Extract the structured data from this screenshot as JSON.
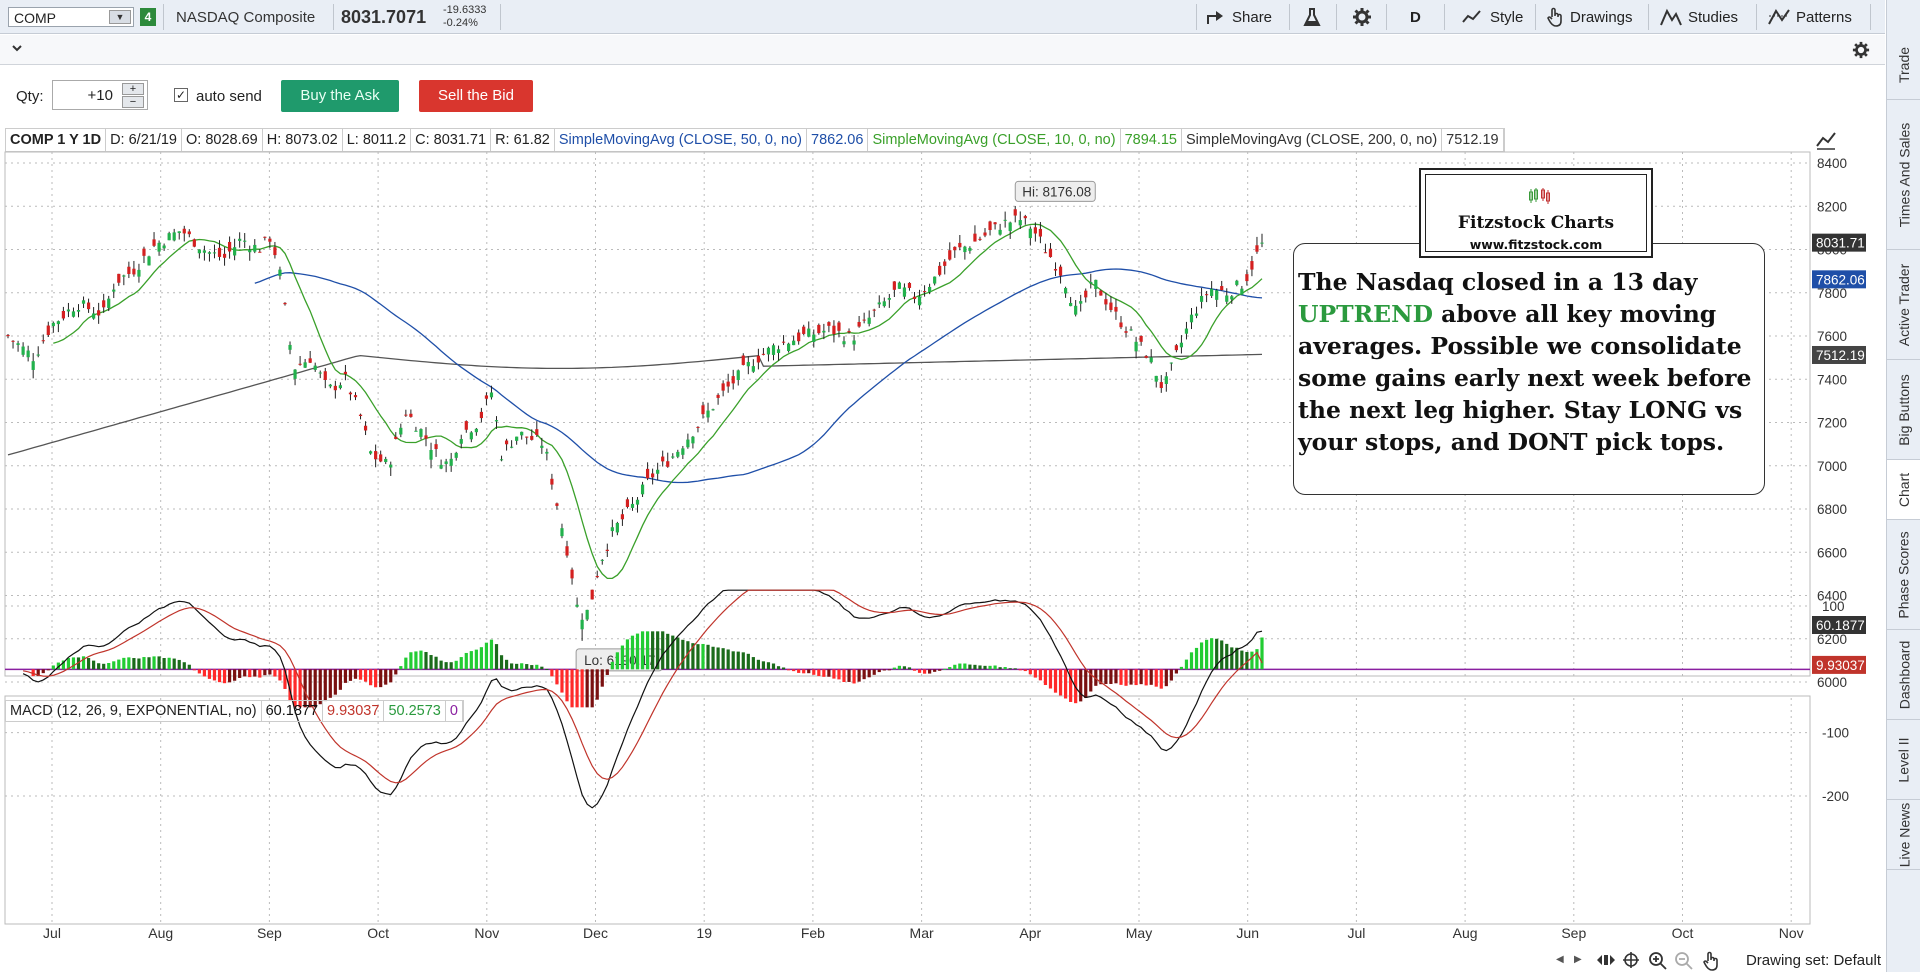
{
  "toolbar": {
    "symbol": "COMP",
    "link_badge": "4",
    "description": "NASDAQ Composite",
    "last_price": "8031.7071",
    "change_abs": "-19.6333",
    "change_pct": "-0.24%",
    "share": "Share",
    "timeframe": "D",
    "style": "Style",
    "drawings": "Drawings",
    "studies": "Studies",
    "patterns": "Patterns"
  },
  "order": {
    "qty_label": "Qty:",
    "qty_value": "+10",
    "auto_send": "auto send",
    "buy_label": "Buy the Ask",
    "sell_label": "Sell the Bid"
  },
  "infobar": {
    "symbol": "COMP 1 Y 1D",
    "date": "D: 6/21/19",
    "open": "O: 8028.69",
    "high": "H: 8073.02",
    "low": "L: 8011.2",
    "close": "C: 8031.71",
    "range": "R: 61.82",
    "sma50_label": "SimpleMovingAvg (CLOSE, 50, 0, no)",
    "sma50_value": "7862.06",
    "sma10_label": "SimpleMovingAvg (CLOSE, 10, 0, no)",
    "sma10_value": "7894.15",
    "sma200_label": "SimpleMovingAvg (CLOSE, 200, 0, no)",
    "sma200_value": "7512.19"
  },
  "price_axis": {
    "ticks": [
      "8400",
      "8200",
      "8000",
      "7800",
      "7600",
      "7400",
      "7200",
      "7000",
      "6800",
      "6600",
      "6400",
      "6200",
      "6000"
    ],
    "last_label": "8031.71",
    "sma50_label": "7862.06",
    "sma200_label": "7512.19"
  },
  "callouts": {
    "high": "Hi: 8176.08",
    "low": "Lo: 6190.17"
  },
  "macd": {
    "label": "MACD (12, 26, 9, EXPONENTIAL, no)",
    "value": "60.1877",
    "avg": "9.93037",
    "diff": "50.2573",
    "zero": "0",
    "axis_ticks": [
      "100",
      "-100",
      "-200"
    ],
    "value_label": "60.1877",
    "avg_label": "9.93037"
  },
  "time_axis": [
    "Jul",
    "Aug",
    "Sep",
    "Oct",
    "Nov",
    "Dec",
    "19",
    "Feb",
    "Mar",
    "Apr",
    "May",
    "Jun",
    "Jul",
    "Aug",
    "Sep",
    "Oct",
    "Nov"
  ],
  "annotation": {
    "part1": "The Nasdaq closed in a 13 day ",
    "uptrend": "UPTREND",
    "part2": " above all key moving averages.   Possible we consolidate some gains early next week before the next leg higher.  Stay LONG vs your stops, and DONT pick tops."
  },
  "logo": {
    "title": "Fitzstock Charts",
    "url": "www.fitzstock.com"
  },
  "sidebar_tabs": [
    "Trade",
    "Times And Sales",
    "Active Trader",
    "Big Buttons",
    "Chart",
    "Phase Scores",
    "Dashboard",
    "Level II",
    "Live News"
  ],
  "bottom": {
    "drawing_set": "Drawing set: Default"
  },
  "colors": {
    "up": "#22b14c",
    "down": "#d42020",
    "sma10": "#3aa02a",
    "sma50": "#1f4fa8",
    "sma200": "#555555",
    "macd_value": "#111111",
    "macd_avg": "#c0342b",
    "zero_line": "#8a1fa0"
  },
  "chart_data": {
    "type": "candlestick",
    "series_closes": {
      "name": "COMP",
      "x_start": "2018-06-25",
      "x_end": "2019-06-21",
      "monthly_approx": [
        {
          "date": "2018-07",
          "close": 7600
        },
        {
          "date": "2018-08",
          "close": 7800
        },
        {
          "date": "2018-09",
          "close": 8100
        },
        {
          "date": "2018-10",
          "close": 7300
        },
        {
          "date": "2018-11",
          "close": 7300
        },
        {
          "date": "2018-12",
          "close": 6400
        },
        {
          "date": "2019-01",
          "close": 7100
        },
        {
          "date": "2019-02",
          "close": 7500
        },
        {
          "date": "2019-03",
          "close": 7700
        },
        {
          "date": "2019-04",
          "close": 8100
        },
        {
          "date": "2019-05",
          "close": 7500
        },
        {
          "date": "2019-06",
          "close": 8031.71
        }
      ]
    },
    "high": 8176.08,
    "low": 6190.17,
    "ylim": [
      5900,
      8450
    ],
    "macd_ylim": [
      -230,
      130
    ]
  }
}
